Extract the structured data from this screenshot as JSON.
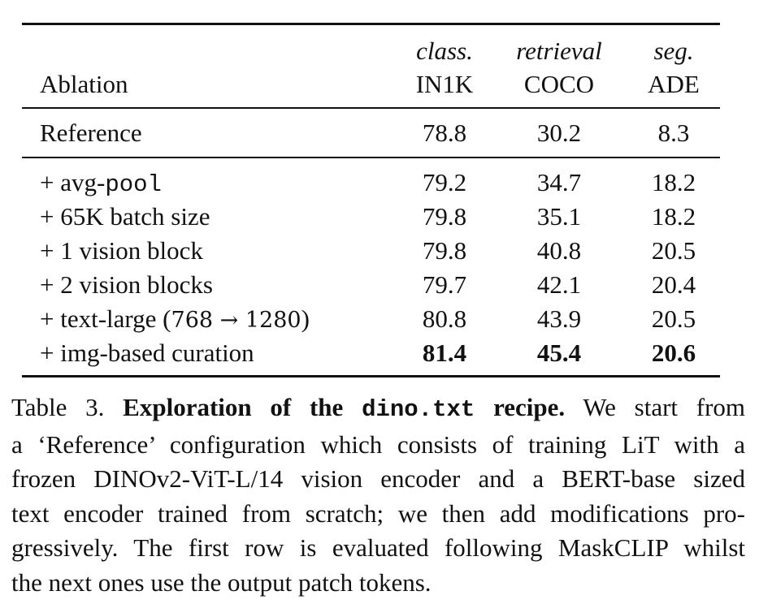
{
  "table": {
    "header": {
      "ablation": "Ablation",
      "cols": [
        {
          "task": "class.",
          "dataset": "IN1K"
        },
        {
          "task": "retrieval",
          "dataset": "COCO"
        },
        {
          "task": "seg.",
          "dataset": "ADE"
        }
      ]
    },
    "reference": {
      "label": "Reference",
      "in1k": "78.8",
      "coco": "30.2",
      "ade": "8.3"
    },
    "rows": [
      {
        "prefix": "+ avg-",
        "mono": "pool",
        "in1k": "79.2",
        "coco": "34.7",
        "ade": "18.2"
      },
      {
        "label": "+ 65K batch size",
        "in1k": "79.8",
        "coco": "35.1",
        "ade": "18.2"
      },
      {
        "label": "+ 1 vision block",
        "in1k": "79.8",
        "coco": "40.8",
        "ade": "20.5"
      },
      {
        "label": "+ 2 vision blocks",
        "in1k": "79.7",
        "coco": "42.1",
        "ade": "20.4"
      },
      {
        "prefix": "+ text-large (",
        "math": "768 → 1280",
        "suffix": ")",
        "in1k": "80.8",
        "coco": "43.9",
        "ade": "20.5"
      },
      {
        "label": "+ img-based curation",
        "in1k": "81.4",
        "coco": "45.4",
        "ade": "20.6"
      }
    ]
  },
  "caption": {
    "table_label": "Table 3.",
    "bold_pre": "Exploration of the",
    "bold_mono": "dino.txt",
    "bold_post": "recipe.",
    "line1_tail": "We start from",
    "line2": "a ‘Reference’ configuration which consists of training LiT with a",
    "line3": "frozen DINOv2-ViT-L/14 vision encoder and a BERT-base sized",
    "line4": "text encoder trained from scratch; we then add modifications pro-",
    "line5": "gressively. The first row is evaluated following MaskCLIP whilst",
    "line6": "the next ones use the output patch tokens."
  }
}
